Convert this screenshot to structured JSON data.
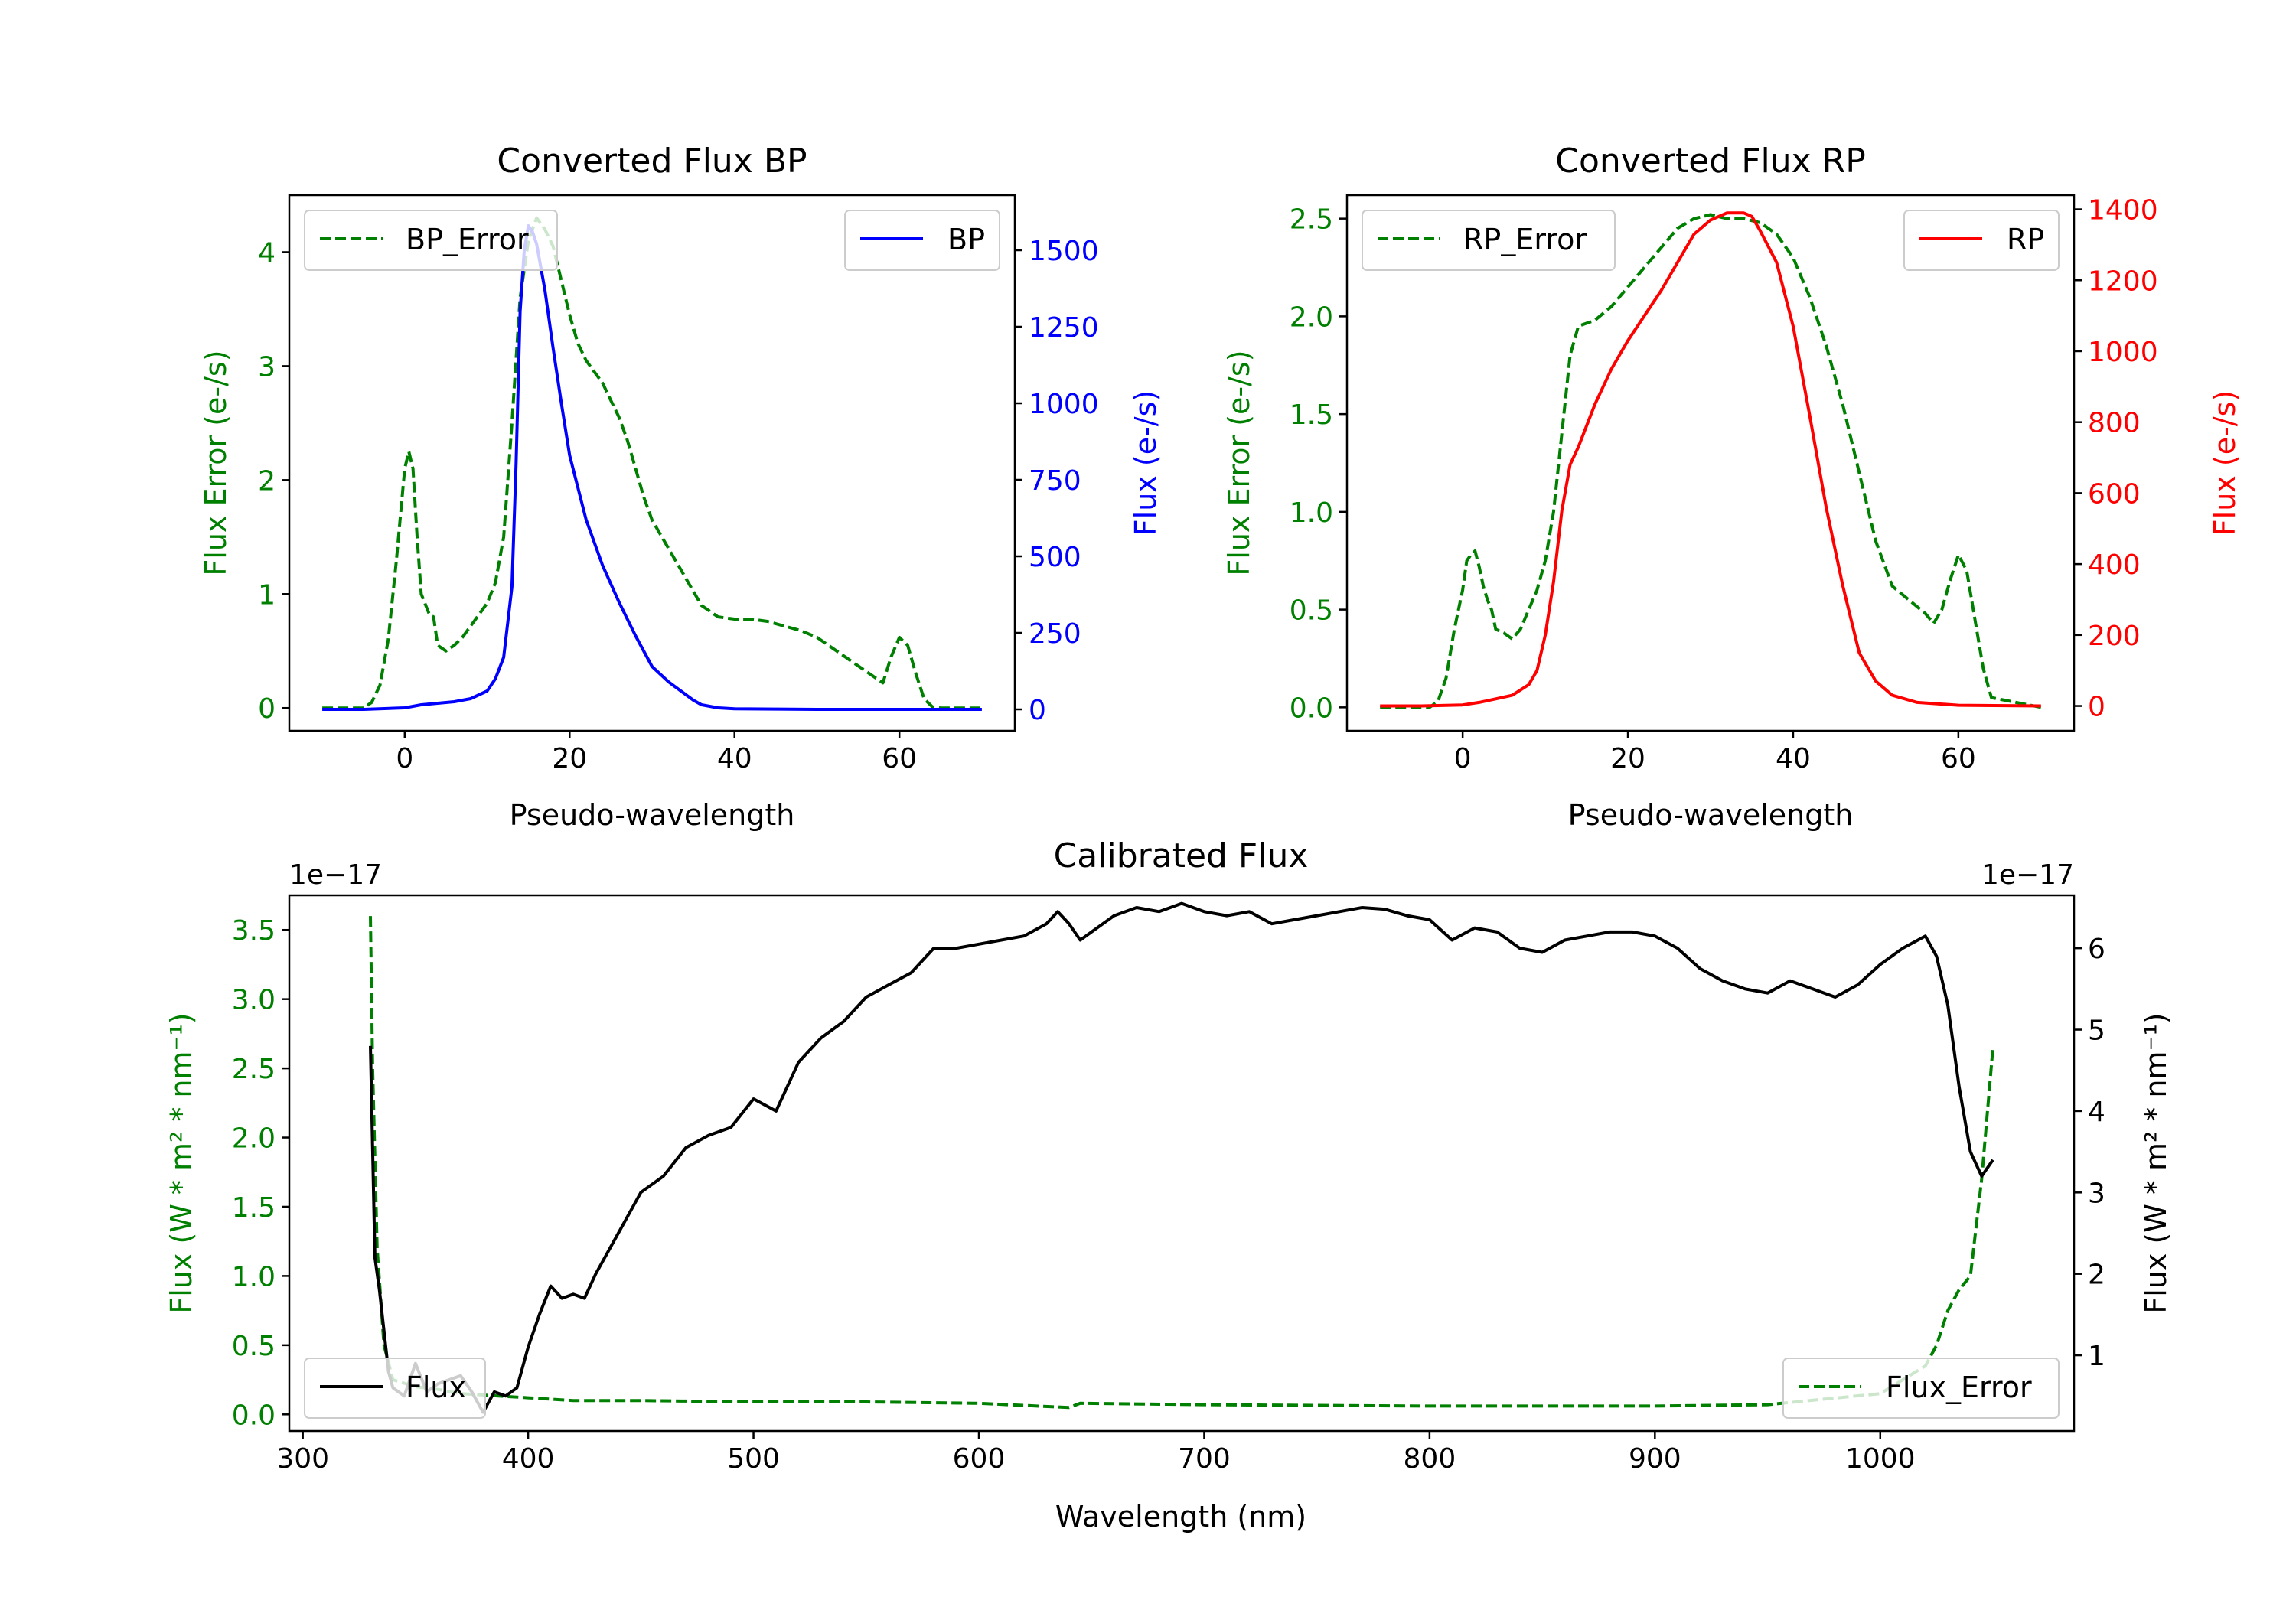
{
  "figure": {
    "background": "#ffffff"
  },
  "chart_data": [
    {
      "id": "bp",
      "type": "line",
      "title": "Converted Flux BP",
      "xlabel": "Pseudo-wavelength",
      "xlim": [
        -14,
        74
      ],
      "xticks": [
        0,
        20,
        40,
        60
      ],
      "y_left": {
        "label": "Flux Error (e-/s)",
        "color": "#008000",
        "lim": [
          -0.2,
          4.5
        ],
        "ticks": [
          0,
          1,
          2,
          3,
          4
        ]
      },
      "y_right": {
        "label": "Flux (e-/s)",
        "color": "#0000ff",
        "lim": [
          -70,
          1680
        ],
        "ticks": [
          0,
          250,
          500,
          750,
          1000,
          1250,
          1500
        ]
      },
      "series": [
        {
          "name": "BP_Error",
          "axis": "left",
          "style": "dashed",
          "color": "#008000",
          "x": [
            -10,
            -5,
            -4,
            -3,
            -2,
            -1,
            0,
            0.5,
            1,
            1.5,
            2,
            3,
            3.5,
            4,
            5,
            6,
            7,
            8,
            9,
            10,
            11,
            12,
            13,
            14,
            15,
            16,
            17,
            18,
            19,
            20,
            21,
            22,
            23,
            24,
            25,
            26,
            27,
            28,
            29,
            30,
            32,
            34,
            36,
            38,
            40,
            42,
            44,
            46,
            48,
            50,
            52,
            54,
            56,
            58,
            59,
            60,
            61,
            62,
            63,
            64,
            65,
            70
          ],
          "values": [
            0,
            0,
            0.05,
            0.2,
            0.6,
            1.3,
            2.1,
            2.25,
            2.1,
            1.5,
            1.0,
            0.82,
            0.8,
            0.55,
            0.5,
            0.55,
            0.62,
            0.72,
            0.82,
            0.92,
            1.1,
            1.5,
            2.5,
            3.6,
            4.1,
            4.3,
            4.2,
            4.05,
            3.75,
            3.45,
            3.2,
            3.05,
            2.95,
            2.85,
            2.7,
            2.55,
            2.35,
            2.1,
            1.85,
            1.65,
            1.4,
            1.15,
            0.9,
            0.8,
            0.78,
            0.78,
            0.76,
            0.72,
            0.68,
            0.62,
            0.52,
            0.42,
            0.32,
            0.22,
            0.45,
            0.62,
            0.55,
            0.3,
            0.08,
            0.01,
            0,
            0
          ]
        },
        {
          "name": "BP",
          "axis": "right",
          "style": "solid",
          "color": "#0000ff",
          "x": [
            -10,
            -5,
            0,
            2,
            4,
            6,
            8,
            10,
            11,
            12,
            13,
            13.5,
            14,
            14.5,
            15,
            15.5,
            16,
            17,
            18,
            19,
            20,
            22,
            24,
            26,
            28,
            30,
            32,
            34,
            35,
            36,
            38,
            40,
            45,
            50,
            60,
            70
          ],
          "values": [
            0,
            0,
            5,
            15,
            20,
            25,
            35,
            60,
            100,
            170,
            400,
            800,
            1300,
            1500,
            1580,
            1560,
            1520,
            1370,
            1180,
            1000,
            830,
            620,
            470,
            350,
            240,
            140,
            90,
            50,
            30,
            15,
            5,
            2,
            1,
            0,
            0,
            0
          ]
        }
      ],
      "legend": [
        {
          "label": "BP_Error",
          "style": "dashed",
          "color": "#008000",
          "loc": "upper left"
        },
        {
          "label": "BP",
          "style": "solid",
          "color": "#0000ff",
          "loc": "upper right"
        }
      ]
    },
    {
      "id": "rp",
      "type": "line",
      "title": "Converted Flux RP",
      "xlabel": "Pseudo-wavelength",
      "xlim": [
        -14,
        74
      ],
      "xticks": [
        0,
        20,
        40,
        60
      ],
      "y_left": {
        "label": "Flux Error (e-/s)",
        "color": "#008000",
        "lim": [
          -0.12,
          2.62
        ],
        "ticks": [
          0.0,
          0.5,
          1.0,
          1.5,
          2.0,
          2.5
        ]
      },
      "y_right": {
        "label": "Flux (e-/s)",
        "color": "#ff0000",
        "lim": [
          -70,
          1440
        ],
        "ticks": [
          0,
          200,
          400,
          600,
          800,
          1000,
          1200,
          1400
        ]
      },
      "series": [
        {
          "name": "RP_Error",
          "axis": "left",
          "style": "dashed",
          "color": "#008000",
          "x": [
            -10,
            -4,
            -3,
            -2,
            -1,
            0,
            0.5,
            1,
            1.5,
            2,
            2.5,
            3,
            3.5,
            4,
            5,
            6,
            7,
            8,
            9,
            10,
            11,
            12,
            13,
            14,
            16,
            18,
            20,
            22,
            24,
            26,
            28,
            30,
            32,
            34,
            36,
            38,
            40,
            42,
            44,
            46,
            48,
            50,
            52,
            54,
            56,
            57,
            58,
            59,
            60,
            61,
            62,
            63,
            64,
            70
          ],
          "values": [
            0,
            0,
            0.03,
            0.15,
            0.4,
            0.6,
            0.75,
            0.78,
            0.8,
            0.72,
            0.62,
            0.55,
            0.5,
            0.4,
            0.38,
            0.35,
            0.4,
            0.5,
            0.6,
            0.75,
            1.0,
            1.4,
            1.8,
            1.95,
            1.98,
            2.05,
            2.15,
            2.25,
            2.35,
            2.45,
            2.5,
            2.52,
            2.5,
            2.5,
            2.48,
            2.42,
            2.3,
            2.1,
            1.85,
            1.55,
            1.2,
            0.85,
            0.62,
            0.55,
            0.48,
            0.43,
            0.5,
            0.65,
            0.78,
            0.7,
            0.45,
            0.2,
            0.05,
            0
          ]
        },
        {
          "name": "RP",
          "axis": "right",
          "style": "solid",
          "color": "#ff0000",
          "x": [
            -10,
            -5,
            0,
            2,
            4,
            6,
            8,
            9,
            10,
            11,
            12,
            13,
            14,
            16,
            18,
            20,
            22,
            24,
            26,
            28,
            30,
            32,
            33,
            34,
            35,
            36,
            38,
            40,
            42,
            44,
            46,
            48,
            50,
            52,
            55,
            60,
            70
          ],
          "values": [
            0,
            0,
            3,
            10,
            20,
            30,
            60,
            100,
            200,
            350,
            550,
            680,
            730,
            850,
            950,
            1030,
            1100,
            1170,
            1250,
            1330,
            1370,
            1390,
            1390,
            1390,
            1380,
            1340,
            1250,
            1070,
            820,
            560,
            340,
            150,
            70,
            30,
            10,
            2,
            0
          ]
        }
      ],
      "legend": [
        {
          "label": "RP_Error",
          "style": "dashed",
          "color": "#008000",
          "loc": "upper left"
        },
        {
          "label": "RP",
          "style": "solid",
          "color": "#ff0000",
          "loc": "upper right"
        }
      ]
    },
    {
      "id": "cal",
      "type": "line",
      "title": "Calibrated Flux",
      "xlabel": "Wavelength (nm)",
      "xlim": [
        294,
        1086
      ],
      "xticks": [
        300,
        400,
        500,
        600,
        700,
        800,
        900,
        1000
      ],
      "y_left": {
        "label": "Flux (W * m² * nm⁻¹)",
        "color": "#008000",
        "offset": "1e−17",
        "lim": [
          -0.12,
          3.75
        ],
        "ticks": [
          0.0,
          0.5,
          1.0,
          1.5,
          2.0,
          2.5,
          3.0,
          3.5
        ]
      },
      "y_right": {
        "label": "Flux (W * m² * nm⁻¹)",
        "color": "#000000",
        "offset": "1e−17",
        "lim": [
          0.07,
          6.65
        ],
        "ticks": [
          1,
          2,
          3,
          4,
          5,
          6
        ]
      },
      "series": [
        {
          "name": "Flux_Error",
          "axis": "left",
          "style": "dashed",
          "color": "#008000",
          "x": [
            330,
            331,
            333,
            336,
            340,
            350,
            360,
            370,
            380,
            390,
            400,
            410,
            420,
            450,
            500,
            550,
            600,
            640,
            645,
            700,
            800,
            900,
            950,
            1000,
            1010,
            1020,
            1025,
            1030,
            1035,
            1040,
            1045,
            1050
          ],
          "values": [
            3.6,
            2.5,
            1.2,
            0.5,
            0.25,
            0.2,
            0.18,
            0.15,
            0.14,
            0.13,
            0.12,
            0.11,
            0.1,
            0.1,
            0.09,
            0.09,
            0.08,
            0.05,
            0.08,
            0.07,
            0.06,
            0.06,
            0.07,
            0.15,
            0.25,
            0.35,
            0.5,
            0.75,
            0.9,
            1.0,
            1.7,
            2.65
          ]
        },
        {
          "name": "Flux",
          "axis": "right",
          "style": "solid",
          "color": "#000000",
          "x": [
            330,
            332,
            334,
            336,
            338,
            340,
            345,
            350,
            355,
            360,
            365,
            370,
            375,
            380,
            385,
            390,
            395,
            400,
            405,
            410,
            415,
            420,
            425,
            430,
            440,
            450,
            460,
            470,
            480,
            490,
            500,
            510,
            520,
            530,
            540,
            550,
            560,
            570,
            580,
            590,
            600,
            610,
            620,
            630,
            635,
            640,
            645,
            650,
            660,
            670,
            680,
            690,
            700,
            710,
            720,
            730,
            740,
            750,
            760,
            770,
            780,
            790,
            800,
            810,
            820,
            830,
            840,
            850,
            860,
            870,
            880,
            890,
            900,
            910,
            920,
            930,
            940,
            950,
            960,
            970,
            980,
            990,
            1000,
            1010,
            1020,
            1025,
            1030,
            1035,
            1040,
            1045,
            1050
          ],
          "values": [
            4.8,
            2.2,
            1.8,
            1.3,
            0.8,
            0.6,
            0.5,
            0.9,
            0.55,
            0.65,
            0.7,
            0.75,
            0.55,
            0.3,
            0.55,
            0.5,
            0.6,
            1.1,
            1.5,
            1.85,
            1.7,
            1.75,
            1.7,
            2.0,
            2.5,
            3.0,
            3.2,
            3.55,
            3.7,
            3.8,
            4.15,
            4.0,
            4.6,
            4.9,
            5.1,
            5.4,
            5.55,
            5.7,
            6.0,
            6.0,
            6.05,
            6.1,
            6.15,
            6.3,
            6.45,
            6.3,
            6.1,
            6.2,
            6.4,
            6.5,
            6.45,
            6.55,
            6.45,
            6.4,
            6.45,
            6.3,
            6.35,
            6.4,
            6.45,
            6.5,
            6.48,
            6.4,
            6.35,
            6.1,
            6.25,
            6.2,
            6.0,
            5.95,
            6.1,
            6.15,
            6.2,
            6.2,
            6.15,
            6.0,
            5.75,
            5.6,
            5.5,
            5.45,
            5.6,
            5.5,
            5.4,
            5.55,
            5.8,
            6.0,
            6.15,
            5.9,
            5.3,
            4.3,
            3.5,
            3.2,
            3.4
          ]
        }
      ],
      "legend": [
        {
          "label": "Flux",
          "style": "solid",
          "color": "#000000",
          "loc": "lower left"
        },
        {
          "label": "Flux_Error",
          "style": "dashed",
          "color": "#008000",
          "loc": "lower right"
        }
      ]
    }
  ]
}
